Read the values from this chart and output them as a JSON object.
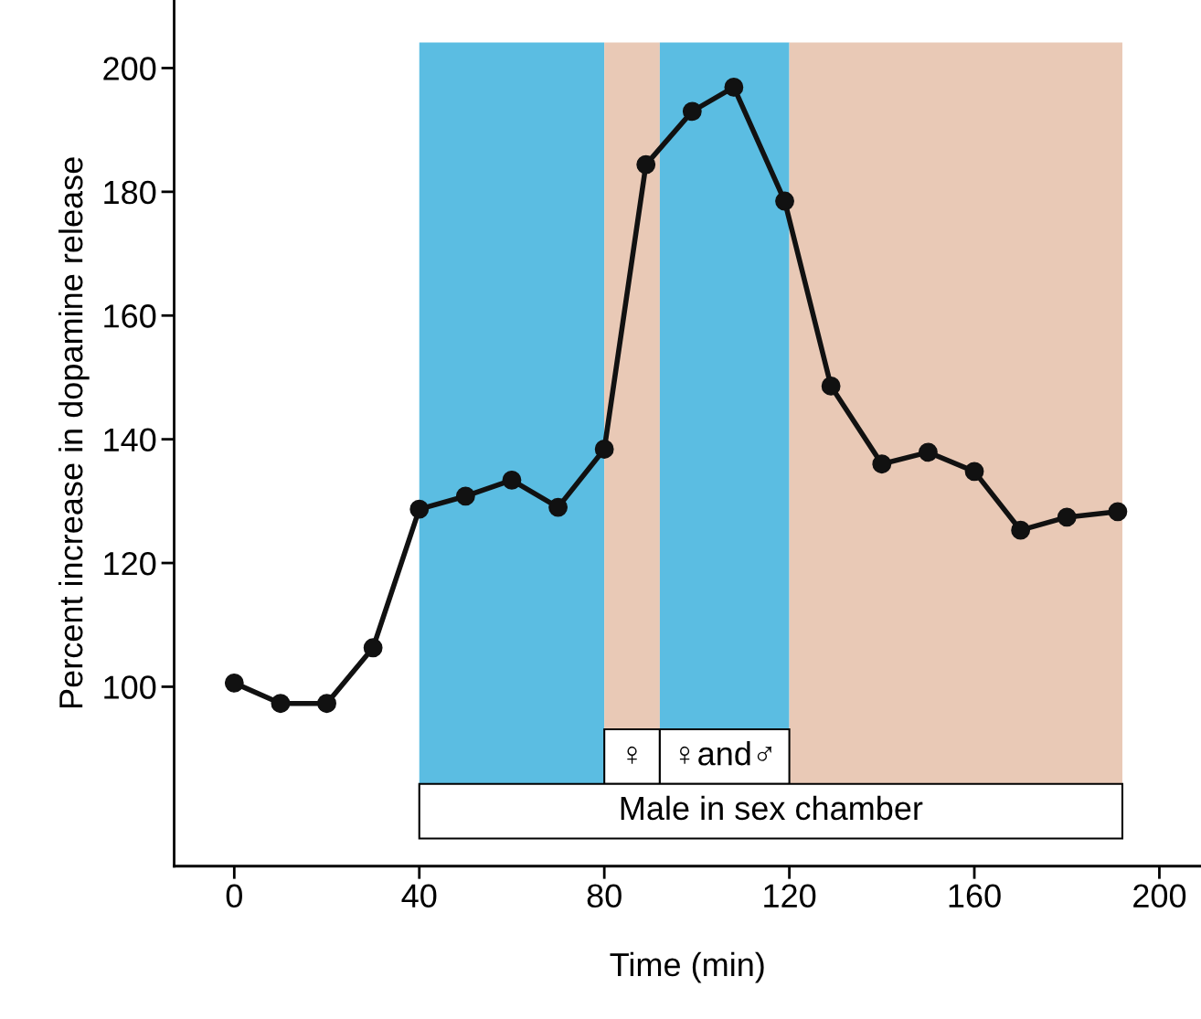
{
  "chart_data": {
    "type": "line",
    "xlabel": "Time (min)",
    "ylabel": "Percent increase in dopamine release",
    "x": [
      0,
      10,
      20,
      30,
      40,
      50,
      60,
      70,
      80,
      89,
      99,
      108,
      119,
      129,
      140,
      150,
      160,
      170,
      180,
      191
    ],
    "series": [
      {
        "color": "#111111",
        "values": [
          100.6,
          97.3,
          97.3,
          106.3,
          128.7,
          130.8,
          133.4,
          129,
          138.4,
          184.4,
          193,
          196.9,
          178.5,
          148.6,
          136,
          137.9,
          134.8,
          125.3,
          127.4,
          128.3
        ]
      }
    ],
    "marker": "circle",
    "line_style": "solid",
    "grid": false,
    "legend": false,
    "xlim": [
      -13,
      209
    ],
    "ylim": [
      71,
      211
    ],
    "xticks": [
      0,
      40,
      80,
      120,
      160,
      200
    ],
    "yticks": [
      100,
      120,
      140,
      160,
      180,
      200
    ],
    "bands": [
      {
        "axis": "x",
        "from": 40,
        "to": 80,
        "color": "#5bbde2"
      },
      {
        "axis": "x",
        "from": 80,
        "to": 92,
        "color": "#e9c9b6",
        "label": "♀"
      },
      {
        "axis": "x",
        "from": 92,
        "to": 120,
        "color": "#5bbde2",
        "label": "♀and♂"
      },
      {
        "axis": "x",
        "from": 120,
        "to": 192,
        "color": "#e9c9b6"
      },
      {
        "axis": "x",
        "from": 40,
        "to": 192,
        "label": "Male in sex chamber"
      }
    ]
  }
}
